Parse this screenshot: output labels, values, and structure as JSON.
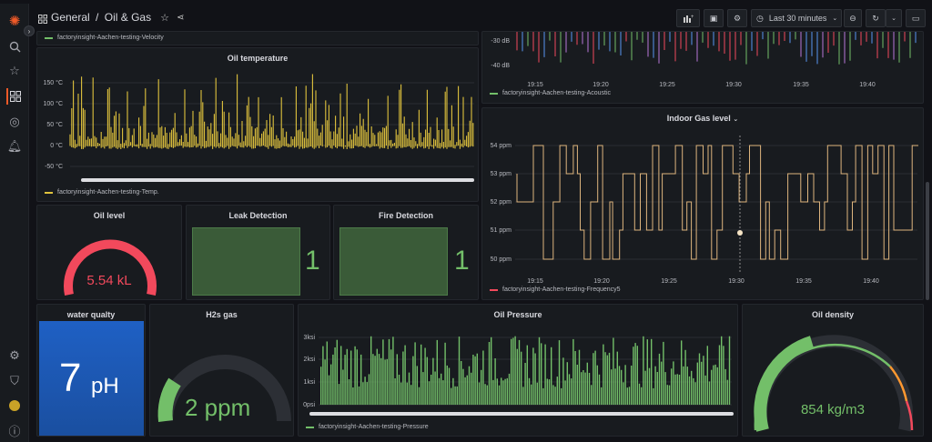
{
  "breadcrumb": {
    "section": "General",
    "separator": "/",
    "dashboard": "Oil & Gas"
  },
  "toolbar": {
    "time_range": "Last 30 minutes"
  },
  "colors": {
    "yellow": "#e0c33d",
    "tan": "#deb57e",
    "green": "#73bf69",
    "red": "#f2495c",
    "orange": "#ff9830",
    "blue": "#1f60c4",
    "darkgreen": "#37872d"
  },
  "panels": {
    "velocity": {
      "legend": "factoryinsight-Aachen-testing-Velocity"
    },
    "acoustic": {
      "legend": "factoryinsight-Aachen-testing-Acoustic",
      "y_ticks": [
        "-30 dB",
        "-40 dB"
      ],
      "x_ticks": [
        "19:15",
        "19:20",
        "19:25",
        "19:30",
        "19:35",
        "19:40"
      ]
    },
    "oil_temperature": {
      "title": "Oil temperature",
      "legend": "factoryinsight-Aachen-testing-Temp.",
      "y_ticks": [
        "150 °C",
        "100 °C",
        "50 °C",
        "0 °C",
        "-50 °C"
      ]
    },
    "indoor_gas": {
      "title": "Indoor Gas level",
      "legend": "factoryinsight-Aachen-testing-Frequency5",
      "y_ticks": [
        "54 ppm",
        "53 ppm",
        "52 ppm",
        "51 ppm",
        "50 ppm"
      ],
      "x_ticks": [
        "19:15",
        "19:20",
        "19:25",
        "19:30",
        "19:35",
        "19:40"
      ]
    },
    "oil_level": {
      "title": "Oil level",
      "value": "5.54 kL"
    },
    "leak": {
      "title": "Leak Detection",
      "value": "1"
    },
    "fire": {
      "title": "Fire Detection",
      "value": "1"
    },
    "water": {
      "title": "water qualty",
      "value": "7",
      "unit": "pH"
    },
    "h2s": {
      "title": "H2s gas",
      "value": "2 ppm"
    },
    "pressure": {
      "title": "Oil Pressure",
      "legend": "factoryinsight-Aachen-testing-Pressure",
      "y_ticks": [
        "3ksi",
        "2ksi",
        "1ksi",
        "0psi"
      ]
    },
    "density": {
      "title": "Oil density",
      "value": "854 kg/m3"
    }
  }
}
